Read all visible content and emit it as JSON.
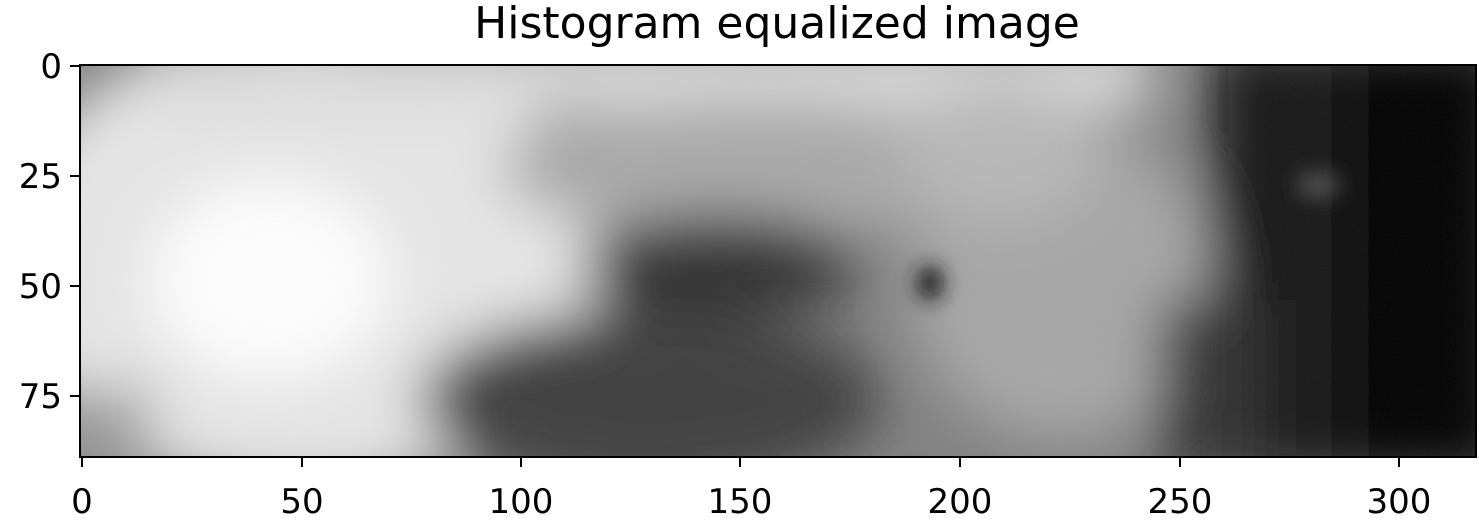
{
  "title": "Histogram equalized image",
  "image": {
    "description_hint": "grayscale",
    "colormap": "gray"
  },
  "axes": {
    "x_ticks": [
      "0",
      "50",
      "100",
      "150",
      "200",
      "250",
      "300"
    ],
    "y_ticks": [
      "0",
      "25",
      "50",
      "75"
    ],
    "x_range": [
      0,
      317
    ],
    "y_range": [
      0,
      89
    ]
  }
}
